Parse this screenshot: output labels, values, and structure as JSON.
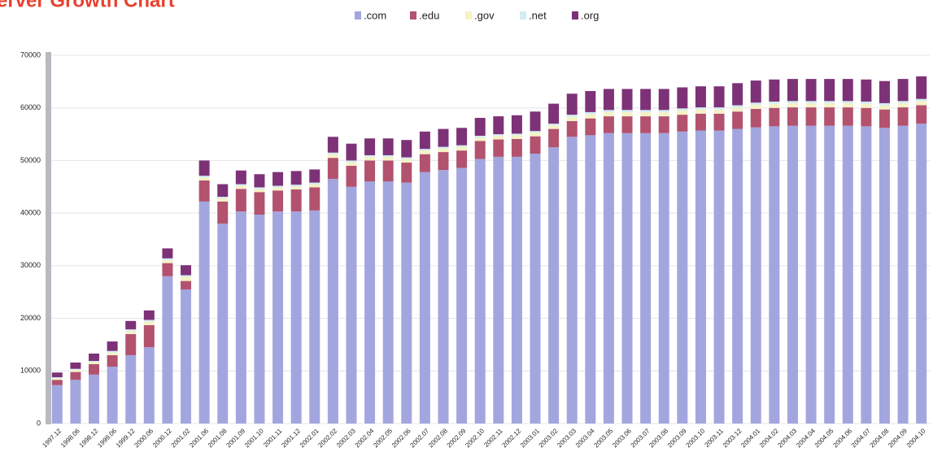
{
  "chart_data": {
    "type": "stacked_bar",
    "title": "erver Growth Chart",
    "categories": [
      "1997.12",
      "1998.06",
      "1998.12",
      "1999.06",
      "1999.12",
      "2000.06",
      "2000.12",
      "2001.02",
      "2001.06",
      "2001.08",
      "2001.09",
      "2001.10",
      "2001.11",
      "2001.12",
      "2002.01",
      "2002.02",
      "2002.03",
      "2002.04",
      "2002.05",
      "2002.06",
      "2002.07",
      "2002.08",
      "2002.09",
      "2002.10",
      "2002.11",
      "2002.12",
      "2003.01",
      "2003.02",
      "2003.03",
      "2003.04",
      "2003.05",
      "2003.06",
      "2003.07",
      "2003.08",
      "2003.09",
      "2003.10",
      "2003.11",
      "2003.12",
      "2004.01",
      "2004.02",
      "2004.03",
      "2004.04",
      "2004.05",
      "2004.06",
      "2004.07",
      "2004.08",
      "2004.09",
      "2004.10"
    ],
    "series": [
      {
        "name": ".com",
        "color": "#a3a6de",
        "values": [
          7300,
          8300,
          9300,
          10800,
          13000,
          14500,
          28000,
          25500,
          42200,
          38000,
          40300,
          39700,
          40300,
          40300,
          40500,
          46500,
          45000,
          46000,
          46000,
          45800,
          47800,
          48200,
          48600,
          50300,
          50700,
          50700,
          51300,
          52500,
          54500,
          54800,
          55200,
          55200,
          55200,
          55200,
          55500,
          55700,
          55700,
          56000,
          56300,
          56500,
          56600,
          56600,
          56600,
          56600,
          56500,
          56200,
          56600,
          57000
        ]
      },
      {
        "name": ".edu",
        "color": "#b2526f",
        "values": [
          1000,
          1500,
          2000,
          2200,
          4000,
          4200,
          2500,
          1600,
          4000,
          4200,
          4300,
          4300,
          4000,
          4200,
          4400,
          4000,
          4000,
          4000,
          4000,
          3800,
          3400,
          3400,
          3300,
          3400,
          3300,
          3400,
          3300,
          3500,
          3000,
          3200,
          3200,
          3200,
          3200,
          3200,
          3200,
          3200,
          3200,
          3300,
          3500,
          3500,
          3500,
          3500,
          3500,
          3500,
          3500,
          3500,
          3500,
          3500
        ]
      },
      {
        "name": ".gov",
        "color": "#f5f2c6",
        "values": [
          300,
          400,
          400,
          500,
          600,
          700,
          600,
          800,
          600,
          600,
          600,
          600,
          600,
          600,
          600,
          700,
          700,
          700,
          700,
          700,
          700,
          700,
          700,
          700,
          700,
          700,
          700,
          700,
          800,
          800,
          800,
          800,
          800,
          800,
          800,
          800,
          800,
          800,
          800,
          800,
          800,
          800,
          800,
          800,
          800,
          800,
          800,
          800
        ]
      },
      {
        "name": ".net",
        "color": "#d3ecf5",
        "values": [
          200,
          200,
          200,
          300,
          300,
          300,
          300,
          300,
          300,
          300,
          300,
          300,
          300,
          300,
          300,
          300,
          300,
          300,
          300,
          300,
          300,
          300,
          300,
          300,
          300,
          300,
          300,
          300,
          400,
          400,
          400,
          400,
          400,
          400,
          400,
          400,
          400,
          400,
          400,
          400,
          400,
          400,
          400,
          400,
          400,
          400,
          400,
          400
        ]
      },
      {
        "name": ".org",
        "color": "#7d3277",
        "values": [
          900,
          1200,
          1400,
          1800,
          1600,
          1800,
          1900,
          1900,
          2900,
          2400,
          2600,
          2500,
          2600,
          2600,
          2500,
          3000,
          3200,
          3200,
          3200,
          3300,
          3300,
          3400,
          3300,
          3400,
          3400,
          3500,
          3700,
          3800,
          4000,
          4000,
          4000,
          4000,
          4000,
          4000,
          4000,
          4000,
          4000,
          4200,
          4200,
          4200,
          4200,
          4200,
          4200,
          4200,
          4200,
          4200,
          4200,
          4300
        ]
      }
    ],
    "ylim": [
      0,
      70000
    ],
    "yticks": [
      0,
      10000,
      20000,
      30000,
      40000,
      50000,
      60000,
      70000
    ],
    "grid": true
  }
}
